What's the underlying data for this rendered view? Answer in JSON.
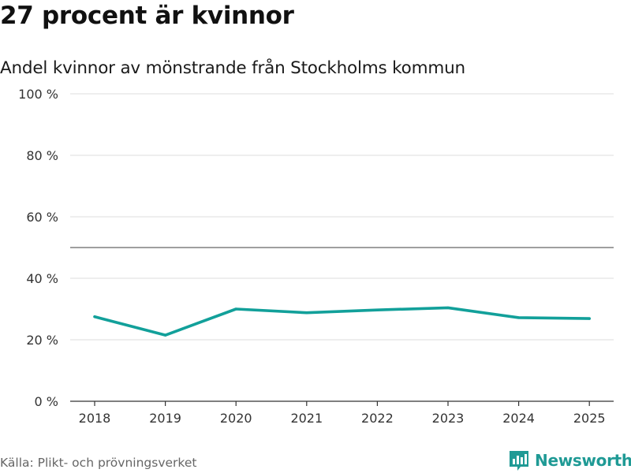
{
  "header": {
    "title": "27 procent är kvinnor",
    "subtitle": "Andel kvinnor av mönstrande från Stockholms kommun"
  },
  "footer": {
    "source": "Källa: Plikt- och prövningsverket",
    "brand": "Newsworthy"
  },
  "colors": {
    "line": "#12a09a",
    "grid": "#dddddd",
    "reference": "#666666",
    "axis": "#333333",
    "brand": "#1f9a95"
  },
  "icons": {
    "brand_logo": "newsworthy-chart-icon"
  },
  "chart_data": {
    "type": "line",
    "title": "27 procent är kvinnor",
    "subtitle": "Andel kvinnor av mönstrande från Stockholms kommun",
    "xlabel": "",
    "ylabel": "",
    "categories": [
      "2018",
      "2019",
      "2020",
      "2021",
      "2022",
      "2023",
      "2024",
      "2025"
    ],
    "series": [
      {
        "name": "Andel kvinnor",
        "values": [
          27.5,
          21.5,
          30.0,
          28.8,
          29.7,
          30.4,
          27.2,
          26.9
        ]
      }
    ],
    "ylim": [
      0,
      100
    ],
    "yticks": [
      0,
      20,
      40,
      60,
      80,
      100
    ],
    "ytick_labels": [
      "0 %",
      "20 %",
      "40 %",
      "60 %",
      "80 %",
      "100 %"
    ],
    "reference_line": 50,
    "grid": true,
    "legend": "none"
  }
}
